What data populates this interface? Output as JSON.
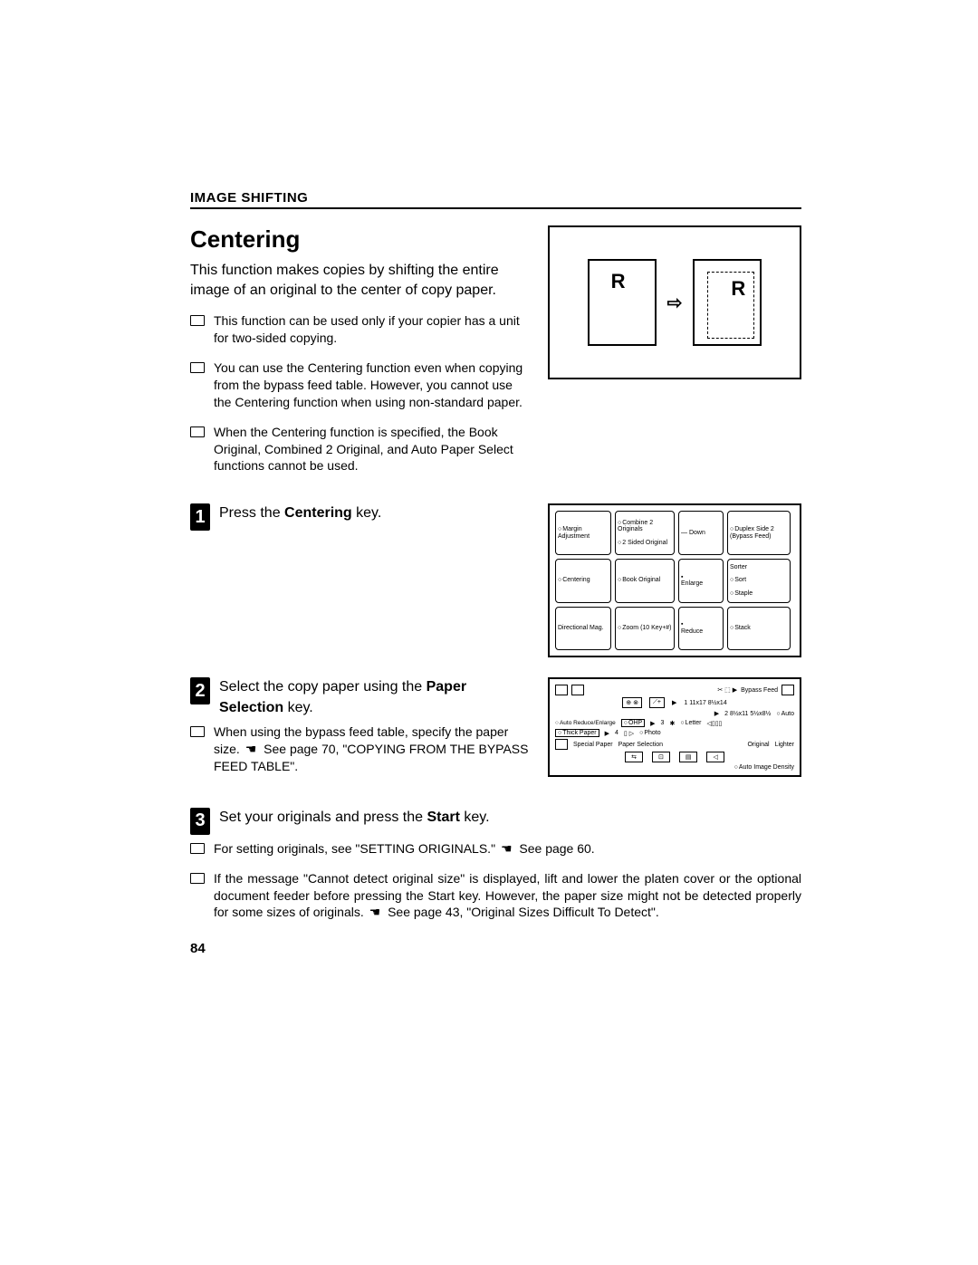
{
  "header": "IMAGE SHIFTING",
  "title": "Centering",
  "intro": "This function makes copies by shifting the entire image of an original to the center of copy paper.",
  "notes_top": [
    "This function can be used only if your copier has a unit for two-sided copying.",
    "You can use the Centering function even when copying from the bypass feed table. However, you cannot use the Centering function when using non-standard paper.",
    "When the Centering function is specified, the Book Original, Combined 2 Original, and Auto Paper Select functions cannot be used."
  ],
  "diagram1": {
    "left_letter": "R",
    "right_letter": "R",
    "arrow": "⇨"
  },
  "step1": {
    "num": "1",
    "pre": "Press the ",
    "bold": "Centering",
    "post": " key."
  },
  "panel": {
    "margin_adj": "Margin Adjustment",
    "centering": "Centering",
    "directional": "Directional Mag.",
    "combine": "Combine 2 Originals",
    "two_sided": "2 Sided Original",
    "book": "Book Original",
    "zoom": "Zoom (10 Key+#)",
    "down": "— Down",
    "enlarge": "Enlarge",
    "reduce": "Reduce",
    "duplex": "Duplex Side 2 (Bypass Feed)",
    "sorter": "Sorter",
    "sort": "Sort",
    "staple": "Staple",
    "stack": "Stack"
  },
  "step2": {
    "num": "2",
    "pre": "Select the copy paper using the ",
    "bold": "Paper Selection",
    "post": " key.",
    "note_pre": "When using the bypass feed table, specify the paper size. ",
    "note_post": " See page 70, \"COPYING FROM THE BYPASS FEED TABLE\"."
  },
  "panel2": {
    "bypass": "Bypass Feed",
    "p1": "1 11x17 8½x14",
    "p2": "2 8½x11 5½x8½",
    "p3": "3",
    "p4": "4",
    "ohp": "OHP",
    "thick": "Thick Paper",
    "auto_re": "Auto Reduce/Enlarge",
    "special": "Special Paper",
    "paper_sel": "Paper Selection",
    "auto": "Auto",
    "letter": "Letter",
    "photo": "Photo",
    "original": "Original",
    "lighter": "Lighter",
    "auto_img": "Auto Image Density"
  },
  "step3": {
    "num": "3",
    "pre": "Set your originals and press the ",
    "bold": "Start",
    "post": " key.",
    "notes": [
      {
        "pre": "For setting originals, see \"SETTING ORIGINALS.\" ",
        "post": " See page 60."
      },
      {
        "pre": "If the message \"Cannot detect original size\" is displayed, lift and lower the platen cover or the optional document feeder before pressing the ",
        "bold": "Start",
        "mid": " key. However, the paper size might not be detected properly for some sizes of originals. ",
        "post": " See page 43, \"Original Sizes Difficult To Detect\"."
      }
    ]
  },
  "page_number": "84"
}
